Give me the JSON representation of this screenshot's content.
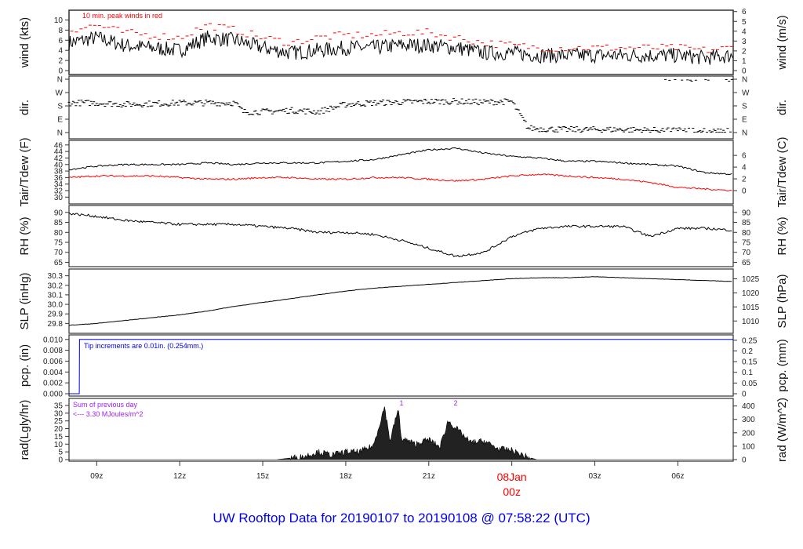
{
  "title": "UW Rooftop Data for 20190107  to  20190108 @ 07:58:22  (UTC)",
  "colors": {
    "title": "#0000ee",
    "peak": "#ff0000",
    "dew": "#ff0000",
    "pcp": "#0000ee",
    "note": "#a020f0",
    "date": "#ff0000"
  },
  "chart_data": [
    {
      "type": "line",
      "id": "wind",
      "ylabel": "wind (kts)",
      "ylabel_right": "wind (m/s)",
      "ylim": [
        0,
        11
      ],
      "yticks": [
        0,
        2,
        4,
        6,
        8,
        10
      ],
      "yticks_right": [
        0,
        1,
        2,
        3,
        4,
        5,
        6
      ],
      "right_scale": 1.944,
      "annotation": "10 min. peak winds in red",
      "x_hours": [
        0,
        1,
        2,
        3,
        4,
        5,
        6,
        7,
        8,
        9,
        10,
        11,
        12,
        13,
        14,
        15,
        16,
        17,
        18,
        19,
        20,
        21,
        22,
        23,
        24
      ],
      "series": [
        {
          "name": "wind",
          "values": [
            5.5,
            6.5,
            5,
            4.5,
            4,
            6.5,
            6,
            4.5,
            3.5,
            4,
            4.5,
            4.5,
            5,
            5,
            4.5,
            3.5,
            3.5,
            3,
            3,
            3,
            3,
            3,
            3,
            2.5,
            3
          ]
        },
        {
          "name": "10 min. peak",
          "values": [
            8,
            9,
            7.5,
            7,
            6.5,
            9,
            8,
            6.5,
            5.5,
            6.5,
            7,
            7,
            7.5,
            7.5,
            6.5,
            5.5,
            5,
            4.5,
            4.5,
            4.5,
            4.5,
            4.5,
            4.5,
            4,
            4.5
          ]
        }
      ]
    },
    {
      "type": "scatter",
      "id": "dir",
      "ylabel": "dir.",
      "ylim": [
        0,
        360
      ],
      "yticks": [
        0,
        90,
        180,
        270,
        360
      ],
      "ytick_labels": [
        "N",
        "E",
        "S",
        "W",
        "N"
      ],
      "x_hours": [
        0,
        1,
        2,
        3,
        4,
        5,
        6,
        6.3,
        7,
        8,
        9,
        10,
        11,
        12,
        13,
        14,
        15,
        16,
        16.6,
        17,
        18,
        19,
        20,
        21,
        22,
        23,
        24
      ],
      "series": [
        {
          "name": "direction (deg)",
          "values": [
            200,
            200,
            190,
            195,
            200,
            200,
            200,
            140,
            140,
            150,
            140,
            190,
            200,
            205,
            210,
            210,
            205,
            210,
            30,
            25,
            20,
            20,
            20,
            15,
            20,
            10,
            10
          ]
        }
      ]
    },
    {
      "type": "line",
      "id": "temp",
      "ylabel": "Tair/Tdew (F)",
      "ylabel_right": "Tair/Tdew (C)",
      "ylim": [
        29.6,
        46.2
      ],
      "yticks": [
        30,
        32,
        34,
        36,
        38,
        40,
        42,
        44,
        46
      ],
      "yticks_right": [
        0,
        2,
        4,
        6
      ],
      "x_hours": [
        0,
        1,
        2,
        3,
        4,
        5,
        6,
        7,
        8,
        9,
        10,
        11,
        12,
        13,
        14,
        15,
        16,
        17,
        18,
        19,
        20,
        21,
        22,
        23,
        24
      ],
      "series": [
        {
          "name": "Tair",
          "values": [
            38.5,
            39.5,
            40,
            40,
            40,
            40.5,
            40,
            40.5,
            40.5,
            40.5,
            41,
            41.5,
            43,
            44.5,
            45,
            43.5,
            42.5,
            42,
            41,
            41,
            40.5,
            40,
            39.5,
            37.5,
            37
          ]
        },
        {
          "name": "Tdew",
          "values": [
            36,
            36.5,
            36.5,
            36.5,
            36,
            35.5,
            35.5,
            36,
            36,
            35.5,
            35.5,
            36,
            36,
            35.5,
            35,
            35.5,
            36.5,
            37,
            36.5,
            36,
            35.5,
            34.5,
            33,
            32.5,
            32
          ]
        }
      ]
    },
    {
      "type": "line",
      "id": "rh",
      "ylabel": "RH (%)",
      "ylabel_right": "RH (%)",
      "ylim": [
        64,
        91.5
      ],
      "yticks": [
        65,
        70,
        75,
        80,
        85,
        90
      ],
      "yticks_right": [
        65,
        70,
        75,
        80,
        85,
        90
      ],
      "x_hours": [
        0,
        1,
        2,
        3,
        4,
        5,
        6,
        7,
        8,
        9,
        10,
        11,
        12,
        13,
        14,
        15,
        16,
        17,
        18,
        19,
        20,
        21,
        22,
        23,
        24
      ],
      "series": [
        {
          "name": "RH",
          "values": [
            89.5,
            88,
            86,
            85,
            84,
            84,
            84,
            83,
            82,
            80,
            80,
            79,
            76,
            72,
            68,
            70,
            78,
            82,
            83,
            83,
            83,
            78,
            82,
            82,
            81
          ]
        }
      ]
    },
    {
      "type": "line",
      "id": "slp",
      "ylabel": "SLP (inHg)",
      "ylabel_right": "SLP (hPa)",
      "ylim": [
        29.77,
        30.33
      ],
      "yticks": [
        29.8,
        29.9,
        30.0,
        30.1,
        30.2,
        30.3
      ],
      "ytick_labels": [
        "29.8",
        "29.9",
        "30.0",
        "30.1",
        "30.2",
        "30.3"
      ],
      "yticks_right": [
        1010,
        1015,
        1020,
        1025
      ],
      "x_hours": [
        0,
        1,
        2,
        3,
        4,
        5,
        6,
        7,
        8,
        9,
        10,
        11,
        12,
        13,
        14,
        15,
        16,
        17,
        18,
        19,
        20,
        21,
        22,
        23,
        24
      ],
      "series": [
        {
          "name": "SLP",
          "values": [
            29.78,
            29.8,
            29.83,
            29.86,
            29.89,
            29.93,
            29.98,
            30.02,
            30.06,
            30.1,
            30.14,
            30.17,
            30.19,
            30.21,
            30.23,
            30.25,
            30.27,
            30.28,
            30.28,
            30.29,
            30.28,
            30.27,
            30.26,
            30.25,
            30.24
          ]
        }
      ]
    },
    {
      "type": "line",
      "id": "pcp",
      "ylabel": "pcp. (in)",
      "ylabel_right": "pcp. (mm)",
      "ylim": [
        0,
        0.0104
      ],
      "yticks": [
        0,
        0.002,
        0.004,
        0.006,
        0.008,
        0.01
      ],
      "ytick_labels": [
        "0.000",
        "0.002",
        "0.004",
        "0.006",
        "0.008",
        "0.010"
      ],
      "yticks_right": [
        0,
        0.05,
        0.1,
        0.15,
        0.2,
        0.25
      ],
      "ytick_labels_right": [
        "0",
        "0.05",
        "0.1",
        "0.15",
        "0.2",
        "0.25"
      ],
      "annotation": "Tip increments are 0.01in. (0.254mm.)",
      "x_hours": [
        0,
        0.37,
        0.38,
        24
      ],
      "series": [
        {
          "name": "pcp",
          "values": [
            0,
            0,
            0.01,
            0.01
          ]
        }
      ]
    },
    {
      "type": "area",
      "id": "rad",
      "ylabel": "rad(Lgly/hr)",
      "ylabel_right": "rad (W/m^2)",
      "ylim": [
        0,
        36.5
      ],
      "yticks": [
        0,
        5,
        10,
        15,
        20,
        25,
        30,
        35
      ],
      "yticks_right": [
        0,
        100,
        200,
        300,
        400
      ],
      "note_line1": "Sum of previous day",
      "note_line2": "<--- 3.30 MJoules/m^2",
      "peak_labels": [
        "1",
        "2"
      ],
      "x_hours": [
        0,
        7.5,
        8,
        8.5,
        9,
        9.5,
        10,
        10.5,
        11,
        11.4,
        11.6,
        11.9,
        12,
        12.5,
        13,
        13.4,
        13.7,
        14,
        14.5,
        15,
        15.5,
        16,
        16.5,
        16.9,
        24
      ],
      "series": [
        {
          "name": "rad",
          "values": [
            0,
            0,
            1,
            2,
            5,
            3,
            5,
            5,
            9,
            34,
            12,
            33,
            14,
            10,
            13,
            8,
            25,
            20,
            11,
            12,
            7,
            6,
            2,
            0,
            0
          ]
        }
      ]
    }
  ],
  "xaxis": {
    "tick_labels": [
      "09z",
      "12z",
      "15z",
      "18z",
      "21z",
      "",
      "03z",
      "06z"
    ],
    "date_label": "08Jan",
    "date_hour": "00z"
  }
}
